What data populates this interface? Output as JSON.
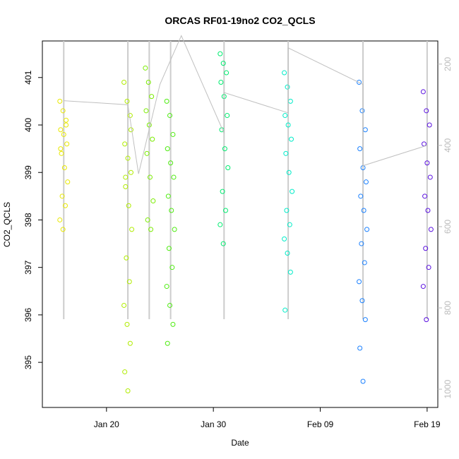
{
  "chart_data": {
    "type": "scatter",
    "title": "ORCAS RF01-19no2 CO2_QCLS",
    "x_label": "Date",
    "y_label": "CO2_QCLS",
    "xlim": [
      "Jan 14",
      "Feb 20"
    ],
    "xticks": [
      "Jan 20",
      "Jan 30",
      "Feb 09",
      "Feb 19"
    ],
    "ylim": [
      394.05,
      401.77
    ],
    "yticks": [
      395,
      396,
      397,
      398,
      399,
      400,
      401
    ],
    "y2lim": [
      1045,
      143
    ],
    "y2ticks": [
      200,
      400,
      600,
      800,
      1000
    ],
    "series": [
      {
        "color": "#e8e800",
        "x": "Jan 16",
        "values": [
          400.5,
          400.3,
          400.1,
          399.9,
          399.8,
          399.6,
          399.4,
          399.1,
          398.8,
          398.5,
          398.3,
          398.0,
          397.8,
          400.0,
          399.5
        ]
      },
      {
        "color": "#b0ec00",
        "x": "Jan 22",
        "values": [
          400.9,
          400.5,
          400.2,
          399.6,
          399.3,
          399.0,
          398.7,
          398.3,
          397.8,
          397.2,
          396.7,
          396.2,
          395.8,
          395.4,
          394.8,
          394.4,
          399.9,
          398.9
        ]
      },
      {
        "color": "#7aec00",
        "x": "Jan 24",
        "values": [
          401.2,
          400.9,
          400.6,
          400.3,
          400.0,
          399.7,
          399.4,
          398.9,
          398.4,
          398.0,
          397.8
        ]
      },
      {
        "color": "#4eec10",
        "x": "Jan 26",
        "values": [
          400.5,
          400.2,
          399.8,
          399.5,
          399.2,
          398.9,
          398.5,
          398.2,
          397.8,
          397.4,
          397.0,
          396.6,
          396.2,
          395.8,
          395.4
        ]
      },
      {
        "color": "#00ec70",
        "x": "Jan 31",
        "values": [
          401.5,
          401.3,
          401.1,
          400.9,
          400.6,
          400.2,
          399.9,
          399.5,
          399.1,
          398.6,
          398.2,
          397.9,
          397.5
        ]
      },
      {
        "color": "#00ecc8",
        "x": "Feb 06",
        "values": [
          401.1,
          400.8,
          400.5,
          400.2,
          400.0,
          399.7,
          399.4,
          399.0,
          398.6,
          398.2,
          397.9,
          397.6,
          397.3,
          396.9,
          396.1
        ]
      },
      {
        "color": "#1a80ff",
        "x": "Feb 13",
        "values": [
          400.9,
          400.3,
          399.9,
          399.5,
          399.1,
          398.8,
          398.5,
          398.2,
          397.8,
          397.5,
          397.1,
          396.7,
          396.3,
          395.9,
          395.3,
          394.6
        ]
      },
      {
        "color": "#5a10e0",
        "x": "Feb 19",
        "values": [
          400.7,
          400.3,
          400.0,
          399.6,
          399.2,
          398.9,
          398.5,
          398.2,
          397.8,
          397.4,
          397.0,
          396.6,
          395.9
        ]
      },
      {
        "type": "line",
        "axis": "y2",
        "color": "#c0c0c0",
        "x": [
          "Jan 16",
          "Jan 22",
          "Jan 23",
          "Jan 25",
          "Jan 27",
          "Jan 31",
          "Jan 31",
          "Feb 06",
          "Feb 06",
          "Feb 13",
          "Feb 13",
          "Feb 19"
        ],
        "values": [
          290,
          300,
          470,
          250,
          130,
          370,
          270,
          320,
          160,
          250,
          450,
          400
        ]
      }
    ]
  }
}
